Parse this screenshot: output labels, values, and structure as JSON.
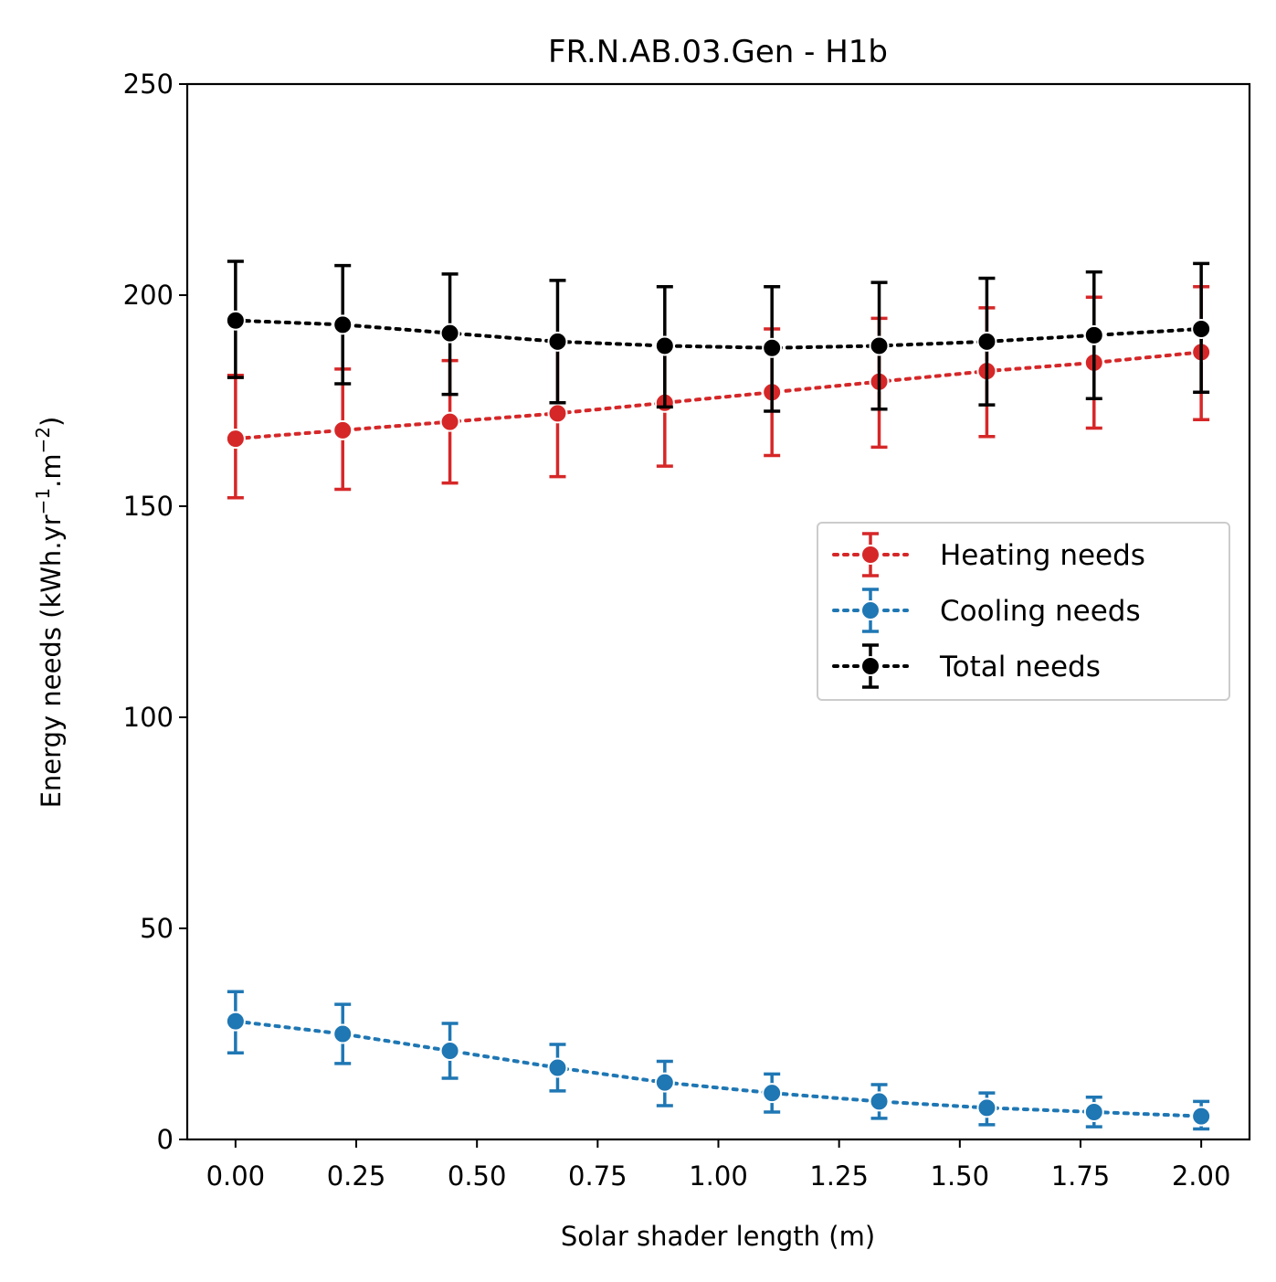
{
  "chart_data": {
    "type": "line",
    "title": "FR.N.AB.03.Gen - H1b",
    "xlabel": "Solar shader length (m)",
    "ylabel_main": "Energy needs (kWh.yr",
    "ylabel_sup1": "−1",
    "ylabel_mid": ".m",
    "ylabel_sup2": "−2",
    "ylabel_end": ")",
    "xlim": [
      -0.1,
      2.1
    ],
    "ylim": [
      0,
      250
    ],
    "x_ticks": [
      "0.00",
      "0.25",
      "0.50",
      "0.75",
      "1.00",
      "1.25",
      "1.50",
      "1.75",
      "2.00"
    ],
    "y_ticks": [
      "0",
      "50",
      "100",
      "150",
      "200",
      "250"
    ],
    "x": [
      0.0,
      0.222,
      0.444,
      0.667,
      0.889,
      1.111,
      1.333,
      1.556,
      1.778,
      2.0
    ],
    "legend_position": "center-right",
    "grid": false,
    "line_style": "dotted",
    "series": [
      {
        "name": "Heating needs",
        "color": "#d62728",
        "values": [
          166,
          168,
          170,
          172,
          174.5,
          177,
          179.5,
          182,
          184,
          186.5
        ],
        "err_low": [
          152,
          154,
          155.5,
          157,
          159.5,
          162,
          164,
          166.5,
          168.5,
          170.5
        ],
        "err_high": [
          181,
          182.5,
          184.5,
          188,
          189,
          192,
          194.5,
          197,
          199.5,
          202
        ]
      },
      {
        "name": "Cooling needs",
        "color": "#1f77b4",
        "values": [
          28,
          25,
          21,
          17,
          13.5,
          11,
          9,
          7.5,
          6.5,
          5.5
        ],
        "err_low": [
          20.5,
          18,
          14.5,
          11.5,
          8,
          6.5,
          5,
          3.5,
          3,
          2.5
        ],
        "err_high": [
          35,
          32,
          27.5,
          22.5,
          18.5,
          15.5,
          13,
          11,
          10,
          9
        ]
      },
      {
        "name": "Total needs",
        "color": "#000000",
        "values": [
          194,
          193,
          191,
          189,
          188,
          187.5,
          188,
          189,
          190.5,
          192
        ],
        "err_low": [
          180.5,
          179,
          176.5,
          174.5,
          173.5,
          172.5,
          173,
          174,
          175.5,
          177
        ],
        "err_high": [
          208,
          207,
          205,
          203.5,
          202,
          202,
          203,
          204,
          205.5,
          207.5
        ]
      }
    ]
  }
}
